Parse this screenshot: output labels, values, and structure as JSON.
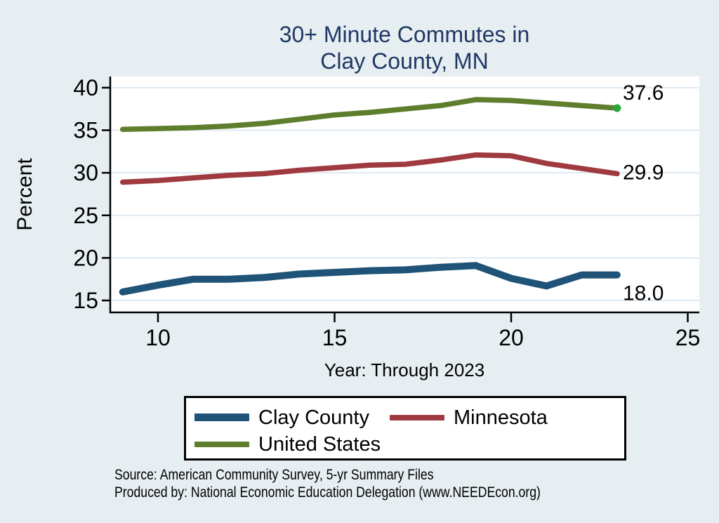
{
  "title": {
    "line1": "30+ Minute Commutes in",
    "line2": "Clay County, MN"
  },
  "source": {
    "line1": "Source: American Community Survey, 5-yr Summary Files",
    "line2": "Produced by: National Economic Education Delegation (www.NEEDEcon.org)"
  },
  "colors": {
    "background": "#e7eef2",
    "plot_background": "#ffffff",
    "gridline": "#dfeaf2",
    "axis": "#000000",
    "title_text": "#1f3864"
  },
  "chart_data": {
    "type": "line",
    "title": "30+ Minute Commutes in Clay County, MN",
    "xlabel": "Year: Through 2023",
    "ylabel": "Percent",
    "x": [
      9,
      10,
      11,
      12,
      13,
      14,
      15,
      16,
      17,
      18,
      19,
      20,
      21,
      22,
      23
    ],
    "x_ticks": [
      10,
      15,
      20,
      25
    ],
    "y_ticks": [
      15,
      20,
      25,
      30,
      35,
      40
    ],
    "xlim": [
      9,
      25
    ],
    "ylim": [
      15,
      40
    ],
    "grid": true,
    "legend_position": "bottom",
    "series": [
      {
        "name": "Clay County",
        "color": "#1f5377",
        "line_width": 10,
        "values": [
          16.0,
          16.8,
          17.5,
          17.5,
          17.7,
          18.1,
          18.3,
          18.5,
          18.6,
          18.9,
          19.1,
          17.6,
          16.7,
          18.0,
          18.0
        ],
        "end_label": "18.0"
      },
      {
        "name": "Minnesota",
        "color": "#9e3a40",
        "line_width": 7.5,
        "values": [
          28.9,
          29.1,
          29.4,
          29.7,
          29.9,
          30.3,
          30.6,
          30.9,
          31.0,
          31.5,
          32.1,
          32.0,
          31.1,
          30.5,
          29.9
        ],
        "end_label": "29.9"
      },
      {
        "name": "United States",
        "color": "#5e7e2e",
        "line_width": 7.5,
        "values": [
          35.1,
          35.2,
          35.3,
          35.5,
          35.8,
          36.3,
          36.8,
          37.1,
          37.5,
          37.9,
          38.6,
          38.5,
          38.2,
          37.9,
          37.6
        ],
        "end_label": "37.6",
        "end_dot_color": "#2aa639"
      }
    ]
  }
}
